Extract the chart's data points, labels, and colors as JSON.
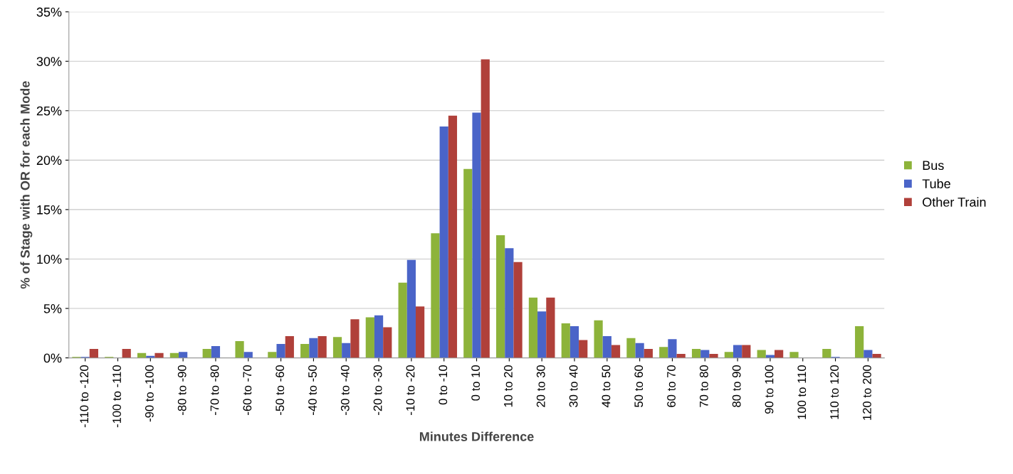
{
  "chart_data": {
    "type": "bar",
    "xlabel": "Minutes Difference",
    "ylabel": "% of Stage with OR for each Mode",
    "categories": [
      "-110 to -120",
      "-100 to -110",
      "-90 to -100",
      "-80 to -90",
      "-70 to -80",
      "-60 to -70",
      "-50 to -60",
      "-40 to -50",
      "-30 to -40",
      "-20 to -30",
      "-10 to -20",
      "0 to -10",
      "0 to 10",
      "10 to 20",
      "20 to 30",
      "30 to 40",
      "40 to 50",
      "50 to 60",
      "60 to 70",
      "70 to 80",
      "80 to 90",
      "90 to 100",
      "100 to 110",
      "110 to 120",
      "120 to 200"
    ],
    "series": [
      {
        "name": "Bus",
        "color": "#8db33a",
        "values": [
          0.1,
          0.1,
          0.5,
          0.5,
          0.9,
          1.7,
          0.6,
          1.4,
          2.1,
          4.1,
          7.6,
          12.6,
          19.1,
          12.4,
          6.1,
          3.5,
          3.8,
          2.0,
          1.1,
          0.9,
          0.6,
          0.8,
          0.6,
          0.9,
          3.2
        ]
      },
      {
        "name": "Tube",
        "color": "#4a64c8",
        "values": [
          0.1,
          0,
          0.2,
          0.6,
          1.2,
          0.6,
          1.4,
          2.0,
          1.5,
          4.3,
          9.9,
          23.4,
          24.8,
          11.1,
          4.7,
          3.2,
          2.2,
          1.5,
          1.9,
          0.8,
          1.3,
          0.3,
          0,
          0.1,
          0.8
        ]
      },
      {
        "name": "Other Train",
        "color": "#b0403a",
        "values": [
          0.9,
          0.9,
          0.5,
          0,
          0,
          0,
          2.2,
          2.2,
          3.9,
          3.1,
          5.2,
          24.5,
          30.2,
          9.7,
          6.1,
          1.8,
          1.3,
          0.9,
          0.4,
          0.4,
          1.3,
          0.8,
          0,
          0,
          0.4
        ]
      }
    ],
    "ylim": [
      0,
      35
    ],
    "yticks": [
      {
        "value": 0,
        "label": "0%"
      },
      {
        "value": 5,
        "label": "5%"
      },
      {
        "value": 10,
        "label": "10%"
      },
      {
        "value": 15,
        "label": "15%"
      },
      {
        "value": 20,
        "label": "20%"
      },
      {
        "value": 25,
        "label": "25%"
      },
      {
        "value": 30,
        "label": "30%"
      },
      {
        "value": 35,
        "label": "35%"
      }
    ],
    "grid": "y",
    "legend": "right"
  }
}
